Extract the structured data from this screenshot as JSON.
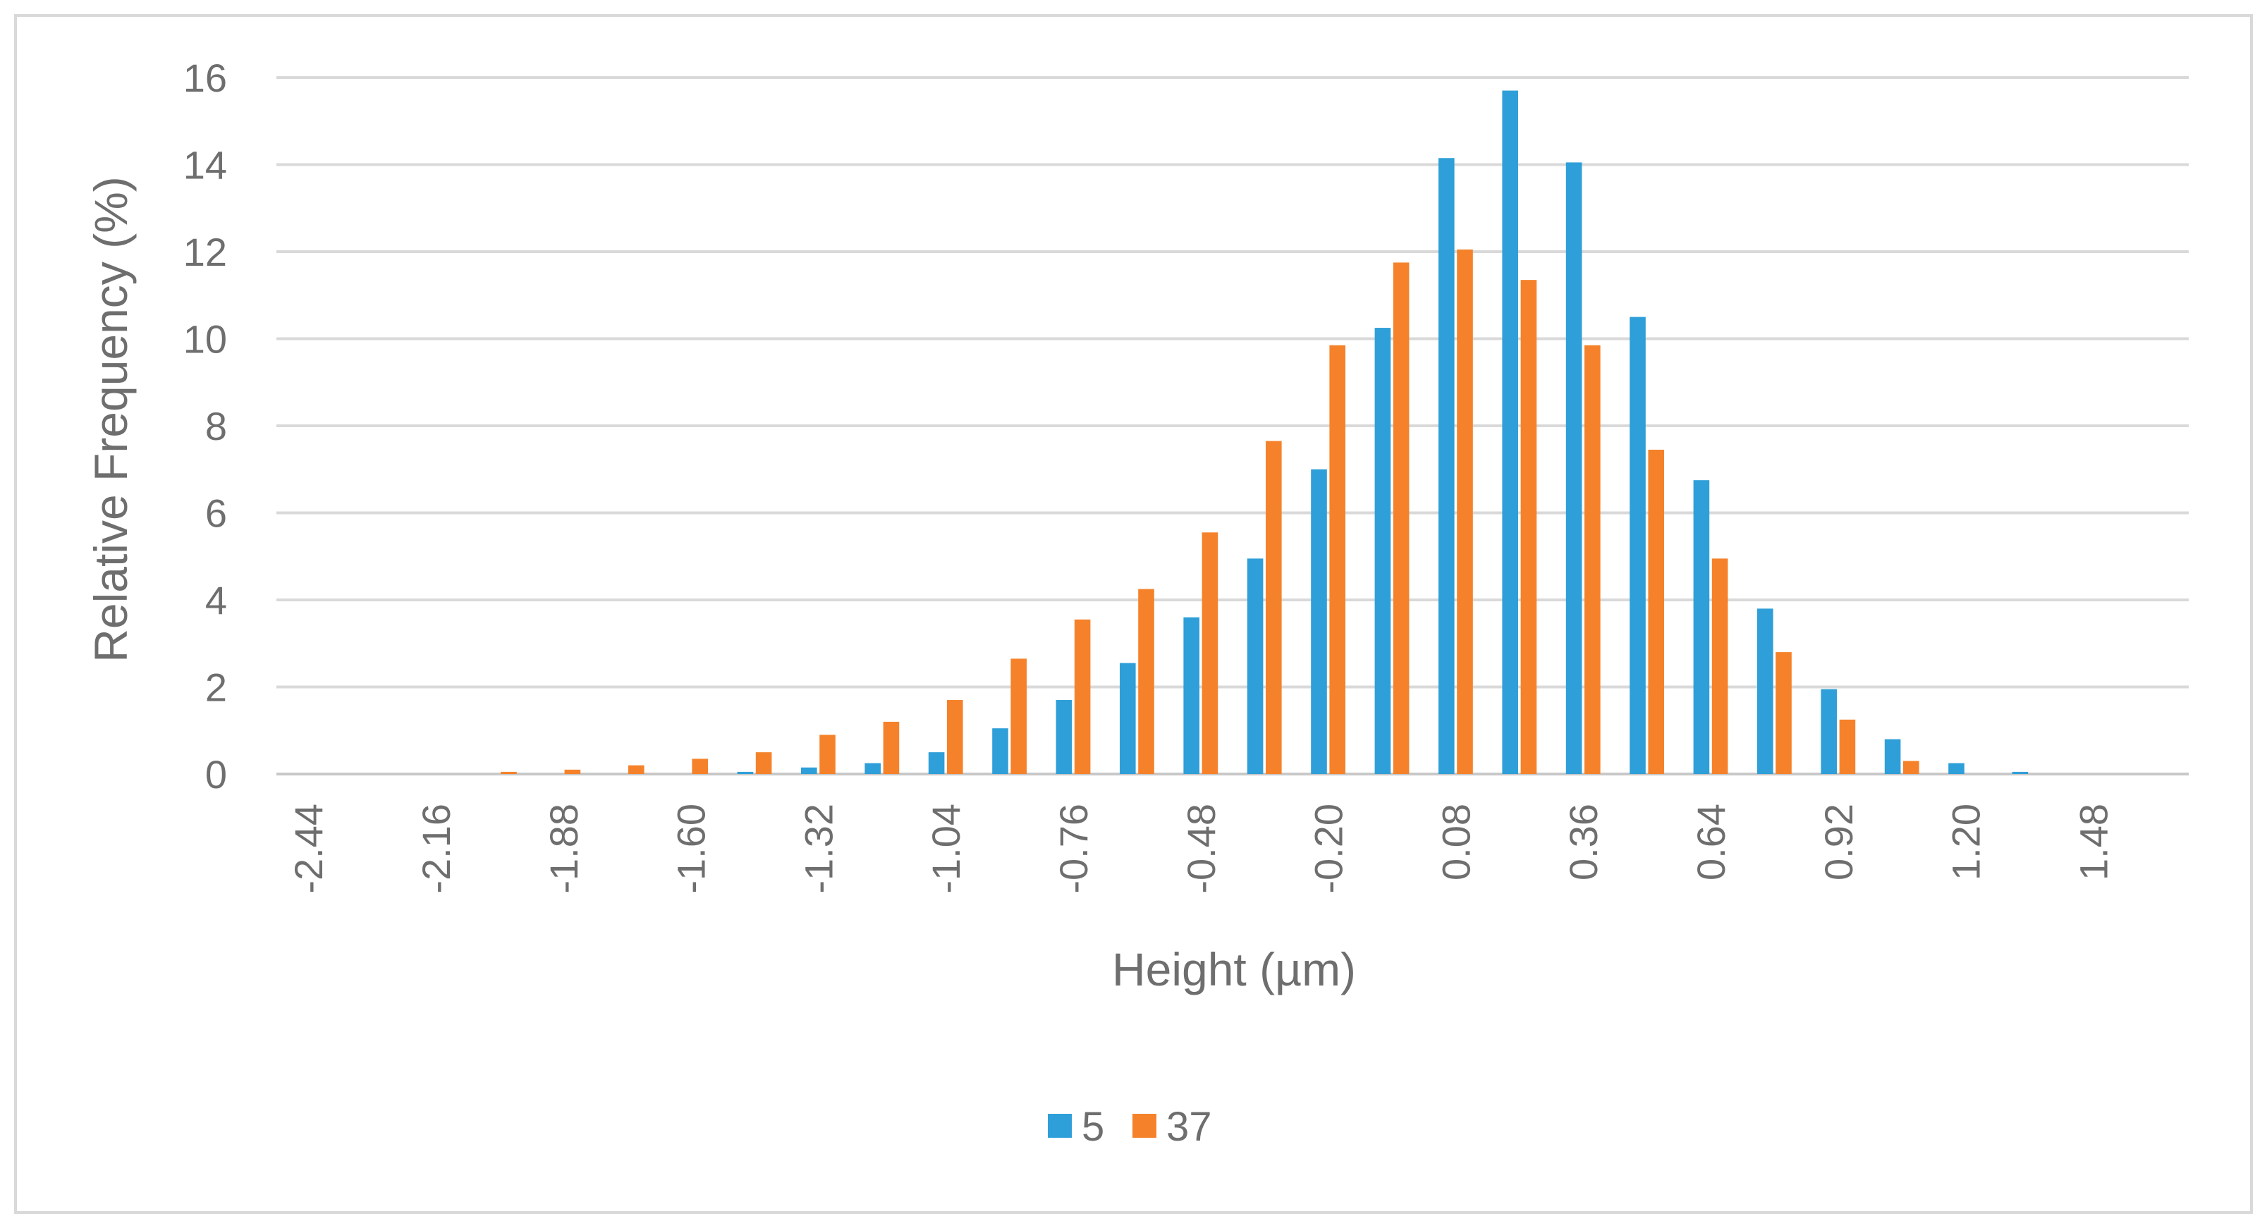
{
  "chart_data": {
    "type": "bar",
    "categories": [
      "-2.44",
      "-2.30",
      "-2.16",
      "-2.02",
      "-1.88",
      "-1.74",
      "-1.60",
      "-1.46",
      "-1.32",
      "-1.18",
      "-1.04",
      "-0.90",
      "-0.76",
      "-0.62",
      "-0.48",
      "-0.34",
      "-0.20",
      "-0.06",
      "0.08",
      "0.22",
      "0.36",
      "0.50",
      "0.64",
      "0.78",
      "0.92",
      "1.06",
      "1.20",
      "1.34",
      "1.48",
      "1.62"
    ],
    "tick_labels": [
      "-2.44",
      "-2.16",
      "-1.88",
      "-1.60",
      "-1.32",
      "-1.04",
      "-0.76",
      "-0.48",
      "-0.20",
      "0.08",
      "0.36",
      "0.64",
      "0.92",
      "1.20",
      "1.48"
    ],
    "series": [
      {
        "name": "5",
        "color": "#2e9fd8",
        "values": [
          0,
          0,
          0,
          0,
          0,
          0,
          0,
          0.05,
          0.15,
          0.25,
          0.5,
          1.05,
          1.7,
          2.55,
          3.6,
          4.95,
          7.0,
          10.25,
          14.15,
          15.7,
          14.05,
          10.5,
          6.75,
          3.8,
          1.95,
          0.8,
          0.25,
          0.05,
          0,
          0
        ]
      },
      {
        "name": "37",
        "color": "#f5822a",
        "values": [
          0,
          0,
          0,
          0.05,
          0.1,
          0.2,
          0.35,
          0.5,
          0.9,
          1.2,
          1.7,
          2.65,
          3.55,
          4.25,
          5.55,
          7.65,
          9.85,
          11.75,
          12.05,
          11.35,
          9.85,
          7.45,
          4.95,
          2.8,
          1.25,
          0.3,
          0,
          0,
          0,
          0
        ]
      }
    ],
    "xlabel": "Height (µm)",
    "ylabel": "Relative Frequency (%)",
    "ylim": [
      0,
      16
    ],
    "yticks": [
      "0",
      "2",
      "4",
      "6",
      "8",
      "10",
      "12",
      "14",
      "16"
    ],
    "grid": true,
    "legend_position": "bottom"
  }
}
